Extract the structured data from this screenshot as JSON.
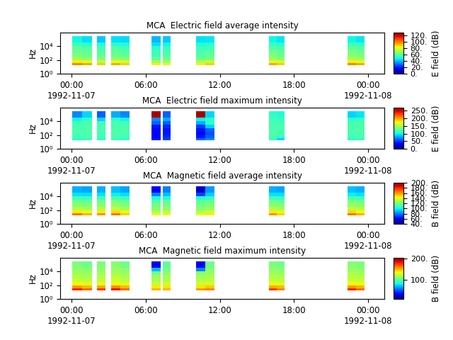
{
  "chart_data": [
    {
      "type": "heatmap",
      "title": "MCA  Electric field average intensity",
      "y_label": "Hz",
      "colorbar_label": "E field (dB)",
      "log": "y",
      "xlim": [
        -0.9,
        25.3
      ],
      "xticks": [
        {
          "value": 0,
          "label": "00:00\n1992-11-07"
        },
        {
          "value": 6,
          "label": "06:00"
        },
        {
          "value": 12,
          "label": "12:00"
        },
        {
          "value": 18,
          "label": "18:00"
        },
        {
          "value": 24,
          "label": "00:00\n1992-11-08"
        }
      ],
      "ylim": [
        1,
        1000000
      ],
      "yticks": [
        {
          "value": 1,
          "label": "10⁰"
        },
        {
          "value": 100,
          "label": "10²"
        },
        {
          "value": 10000,
          "label": "10⁴"
        }
      ],
      "x_edges": [
        0.05,
        0.85,
        1.65,
        2.1,
        2.75,
        3.2,
        3.95,
        4.7,
        6.5,
        7.2,
        7.4,
        8.05,
        10.1,
        10.8,
        11.55,
        15.95,
        16.6,
        17.25,
        22.3,
        23.0,
        23.7
      ],
      "y_edges": [
        16,
        40,
        100,
        300,
        1000,
        3000,
        10000,
        40000,
        300000
      ],
      "cells": [
        [
          100,
          95,
          null,
          90,
          null,
          95,
          90,
          null,
          85,
          null,
          80,
          null,
          85,
          90,
          null,
          95,
          90,
          null,
          100,
          95
        ],
        [
          85,
          80,
          null,
          75,
          null,
          80,
          78,
          null,
          70,
          null,
          70,
          null,
          72,
          75,
          null,
          80,
          78,
          null,
          85,
          80
        ],
        [
          70,
          68,
          null,
          65,
          null,
          68,
          66,
          null,
          60,
          null,
          62,
          null,
          62,
          64,
          null,
          70,
          66,
          null,
          72,
          70
        ],
        [
          65,
          62,
          null,
          60,
          null,
          62,
          60,
          null,
          55,
          null,
          58,
          null,
          58,
          60,
          null,
          65,
          62,
          null,
          66,
          64
        ],
        [
          62,
          60,
          null,
          58,
          null,
          60,
          58,
          null,
          55,
          null,
          56,
          null,
          56,
          58,
          null,
          62,
          60,
          null,
          64,
          62
        ],
        [
          60,
          58,
          null,
          56,
          null,
          58,
          56,
          null,
          52,
          null,
          54,
          null,
          55,
          56,
          null,
          58,
          57,
          null,
          60,
          58
        ],
        [
          55,
          52,
          null,
          50,
          null,
          52,
          50,
          null,
          45,
          null,
          48,
          null,
          50,
          52,
          null,
          54,
          52,
          null,
          55,
          54
        ],
        [
          48,
          45,
          null,
          42,
          null,
          45,
          44,
          null,
          40,
          null,
          42,
          null,
          45,
          46,
          null,
          48,
          46,
          null,
          48,
          46
        ]
      ],
      "colorbar_range": [
        0,
        130
      ],
      "colorbar_ticks": [
        {
          "value": 0,
          "label": "0."
        },
        {
          "value": 20,
          "label": "20."
        },
        {
          "value": 40,
          "label": "40."
        },
        {
          "value": 60,
          "label": "60."
        },
        {
          "value": 80,
          "label": "80."
        },
        {
          "value": 100,
          "label": "100."
        },
        {
          "value": 120,
          "label": "120."
        }
      ]
    },
    {
      "type": "heatmap",
      "title": "MCA  Electric field maximum intensity",
      "y_label": "Hz",
      "colorbar_label": "E field (dB)",
      "log": "y",
      "xlim": [
        -0.9,
        25.3
      ],
      "xticks": [
        {
          "value": 0,
          "label": "00:00\n1992-11-07"
        },
        {
          "value": 6,
          "label": "06:00"
        },
        {
          "value": 12,
          "label": "12:00"
        },
        {
          "value": 18,
          "label": "18:00"
        },
        {
          "value": 24,
          "label": "00:00\n1992-11-08"
        }
      ],
      "ylim": [
        1,
        1000000
      ],
      "yticks": [
        {
          "value": 1,
          "label": "10⁰"
        },
        {
          "value": 100,
          "label": "10²"
        },
        {
          "value": 10000,
          "label": "10⁴"
        }
      ],
      "x_edges": [
        0.05,
        0.85,
        1.65,
        2.1,
        2.75,
        3.2,
        3.95,
        4.7,
        6.5,
        7.2,
        7.4,
        8.05,
        10.1,
        10.8,
        11.55,
        15.95,
        16.6,
        17.25,
        22.3,
        23.0,
        23.7
      ],
      "y_edges": [
        16,
        40,
        100,
        300,
        1000,
        3000,
        10000,
        40000,
        300000
      ],
      "cells": [
        [
          110,
          115,
          null,
          110,
          null,
          115,
          112,
          null,
          40,
          null,
          50,
          null,
          60,
          70,
          null,
          115,
          90,
          null,
          110,
          112
        ],
        [
          115,
          118,
          null,
          115,
          null,
          118,
          115,
          null,
          30,
          null,
          45,
          null,
          40,
          60,
          null,
          118,
          110,
          null,
          115,
          118
        ],
        [
          118,
          120,
          null,
          118,
          null,
          120,
          118,
          null,
          30,
          null,
          40,
          null,
          35,
          55,
          null,
          120,
          118,
          null,
          118,
          120
        ],
        [
          120,
          120,
          null,
          118,
          null,
          120,
          120,
          null,
          35,
          null,
          40,
          null,
          40,
          60,
          null,
          120,
          118,
          null,
          120,
          120
        ],
        [
          118,
          120,
          null,
          118,
          null,
          118,
          118,
          null,
          40,
          null,
          45,
          null,
          50,
          90,
          null,
          118,
          118,
          null,
          118,
          120
        ],
        [
          115,
          118,
          null,
          115,
          null,
          118,
          115,
          null,
          60,
          null,
          60,
          null,
          80,
          110,
          null,
          118,
          115,
          null,
          118,
          118
        ],
        [
          100,
          110,
          null,
          90,
          null,
          110,
          100,
          null,
          70,
          null,
          80,
          null,
          100,
          110,
          null,
          115,
          112,
          null,
          110,
          112
        ],
        [
          70,
          90,
          null,
          60,
          null,
          80,
          70,
          null,
          260,
          null,
          60,
          null,
          260,
          90,
          null,
          110,
          105,
          null,
          90,
          95
        ]
      ],
      "colorbar_range": [
        0,
        270
      ],
      "colorbar_ticks": [
        {
          "value": 0,
          "label": "0."
        },
        {
          "value": 50,
          "label": "50."
        },
        {
          "value": 100,
          "label": "100."
        },
        {
          "value": 150,
          "label": "150."
        },
        {
          "value": 200,
          "label": "200."
        },
        {
          "value": 250,
          "label": "250."
        }
      ]
    },
    {
      "type": "heatmap",
      "title": "MCA  Magnetic field average intensity",
      "y_label": "Hz",
      "colorbar_label": "B field (dB)",
      "log": "y",
      "xlim": [
        -0.9,
        25.3
      ],
      "xticks": [
        {
          "value": 0,
          "label": "00:00\n1992-11-07"
        },
        {
          "value": 6,
          "label": "06:00"
        },
        {
          "value": 12,
          "label": "12:00"
        },
        {
          "value": 18,
          "label": "18:00"
        },
        {
          "value": 24,
          "label": "00:00\n1992-11-08"
        }
      ],
      "ylim": [
        1,
        1000000
      ],
      "yticks": [
        {
          "value": 1,
          "label": "10⁰"
        },
        {
          "value": 100,
          "label": "10²"
        },
        {
          "value": 10000,
          "label": "10⁴"
        }
      ],
      "x_edges": [
        0.05,
        0.85,
        1.65,
        2.1,
        2.75,
        3.2,
        3.95,
        4.7,
        6.5,
        7.2,
        7.4,
        8.05,
        10.1,
        10.8,
        11.55,
        15.95,
        16.6,
        17.25,
        22.3,
        23.0,
        23.7
      ],
      "y_edges": [
        16,
        40,
        100,
        300,
        1000,
        3000,
        10000,
        40000,
        300000
      ],
      "cells": [
        [
          165,
          155,
          null,
          160,
          null,
          165,
          150,
          null,
          140,
          null,
          140,
          null,
          140,
          145,
          null,
          160,
          150,
          null,
          165,
          155
        ],
        [
          145,
          140,
          null,
          145,
          null,
          148,
          140,
          null,
          130,
          null,
          132,
          null,
          130,
          135,
          null,
          145,
          140,
          null,
          148,
          142
        ],
        [
          130,
          128,
          null,
          130,
          null,
          132,
          128,
          null,
          122,
          null,
          124,
          null,
          122,
          125,
          null,
          130,
          128,
          null,
          132,
          130
        ],
        [
          122,
          120,
          null,
          122,
          null,
          124,
          120,
          null,
          118,
          null,
          118,
          null,
          118,
          120,
          null,
          122,
          120,
          null,
          124,
          122
        ],
        [
          118,
          116,
          null,
          118,
          null,
          120,
          116,
          null,
          112,
          null,
          114,
          null,
          114,
          116,
          null,
          118,
          116,
          null,
          120,
          118
        ],
        [
          108,
          106,
          null,
          108,
          null,
          110,
          106,
          null,
          100,
          null,
          102,
          null,
          104,
          106,
          null,
          108,
          106,
          null,
          110,
          108
        ],
        [
          96,
          95,
          null,
          96,
          null,
          98,
          95,
          null,
          80,
          null,
          90,
          null,
          70,
          92,
          null,
          96,
          95,
          null,
          98,
          96
        ],
        [
          88,
          86,
          null,
          88,
          null,
          90,
          86,
          null,
          60,
          null,
          80,
          null,
          50,
          84,
          null,
          88,
          86,
          null,
          90,
          88
        ]
      ],
      "colorbar_range": [
        40,
        200
      ],
      "colorbar_ticks": [
        {
          "value": 40,
          "label": "40."
        },
        {
          "value": 60,
          "label": "60."
        },
        {
          "value": 80,
          "label": "80."
        },
        {
          "value": 100,
          "label": "100."
        },
        {
          "value": 120,
          "label": "120."
        },
        {
          "value": 140,
          "label": "140."
        },
        {
          "value": 160,
          "label": "160."
        },
        {
          "value": 180,
          "label": "180."
        },
        {
          "value": 200,
          "label": "200."
        }
      ]
    },
    {
      "type": "heatmap",
      "title": "MCA  Magnetic field maximum intensity",
      "y_label": "Hz",
      "colorbar_label": "B field (dB)",
      "log": "y",
      "xlim": [
        -0.9,
        25.3
      ],
      "xticks": [
        {
          "value": 0,
          "label": "00:00\n1992-11-07"
        },
        {
          "value": 6,
          "label": "06:00"
        },
        {
          "value": 12,
          "label": "12:00"
        },
        {
          "value": 18,
          "label": "18:00"
        },
        {
          "value": 24,
          "label": "00:00\n1992-11-08"
        }
      ],
      "ylim": [
        1,
        1000000
      ],
      "yticks": [
        {
          "value": 1,
          "label": "10⁰"
        },
        {
          "value": 100,
          "label": "10²"
        },
        {
          "value": 10000,
          "label": "10⁴"
        }
      ],
      "x_edges": [
        0.05,
        0.85,
        1.65,
        2.1,
        2.75,
        3.2,
        3.95,
        4.7,
        6.5,
        7.2,
        7.4,
        8.05,
        10.1,
        10.8,
        11.55,
        15.95,
        16.6,
        17.25,
        22.3,
        23.0,
        23.7
      ],
      "y_edges": [
        16,
        40,
        100,
        300,
        1000,
        3000,
        10000,
        40000,
        300000
      ],
      "cells": [
        [
          180,
          165,
          null,
          175,
          null,
          185,
          165,
          null,
          150,
          null,
          150,
          null,
          155,
          160,
          null,
          175,
          160,
          null,
          180,
          165
        ],
        [
          155,
          148,
          null,
          152,
          null,
          158,
          148,
          null,
          138,
          null,
          140,
          null,
          140,
          145,
          null,
          152,
          148,
          null,
          155,
          150
        ],
        [
          135,
          130,
          null,
          132,
          null,
          136,
          130,
          null,
          125,
          null,
          126,
          null,
          126,
          128,
          null,
          132,
          130,
          null,
          135,
          132
        ],
        [
          124,
          122,
          null,
          124,
          null,
          126,
          122,
          null,
          118,
          null,
          120,
          null,
          120,
          122,
          null,
          124,
          122,
          null,
          125,
          124
        ],
        [
          120,
          118,
          null,
          120,
          null,
          122,
          118,
          null,
          115,
          null,
          116,
          null,
          116,
          118,
          null,
          120,
          118,
          null,
          122,
          120
        ],
        [
          116,
          115,
          null,
          116,
          null,
          118,
          115,
          null,
          105,
          null,
          112,
          null,
          110,
          114,
          null,
          116,
          115,
          null,
          118,
          116
        ],
        [
          112,
          110,
          null,
          112,
          null,
          114,
          110,
          null,
          70,
          null,
          105,
          null,
          60,
          110,
          null,
          112,
          110,
          null,
          114,
          112
        ],
        [
          108,
          105,
          null,
          108,
          null,
          110,
          105,
          null,
          30,
          null,
          100,
          null,
          30,
          104,
          null,
          108,
          105,
          null,
          110,
          108
        ]
      ],
      "colorbar_range": [
        10,
        205
      ],
      "colorbar_ticks": [
        {
          "value": 100,
          "label": "100."
        },
        {
          "value": 200,
          "label": "200."
        }
      ]
    }
  ]
}
